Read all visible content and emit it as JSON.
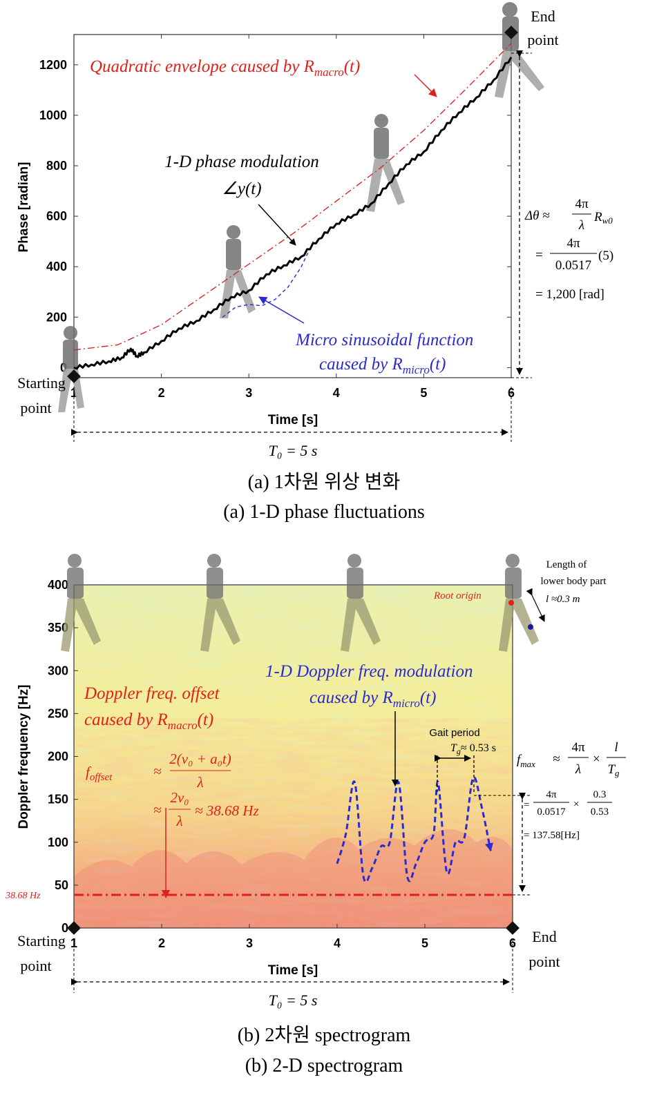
{
  "chart_data": [
    {
      "type": "line",
      "xlabel": "Time [s]",
      "ylabel": "Phase [radian]",
      "xlim": [
        1,
        6
      ],
      "ylim": [
        -40,
        1320
      ],
      "xticks": [
        1,
        2,
        3,
        4,
        5,
        6
      ],
      "yticks": [
        0,
        200,
        400,
        600,
        800,
        1000,
        1200
      ],
      "grid": false,
      "series": [
        {
          "name": "1-D phase modulation ∠y(t)",
          "color": "#000000",
          "x": [
            1.0,
            1.2,
            1.4,
            1.55,
            1.65,
            1.72,
            1.8,
            2.0,
            2.2,
            2.4,
            2.6,
            2.8,
            3.0,
            3.2,
            3.4,
            3.6,
            3.8,
            4.0,
            4.2,
            4.4,
            4.6,
            4.8,
            5.0,
            5.2,
            5.4,
            5.6,
            5.8,
            6.0
          ],
          "y": [
            0,
            12,
            25,
            40,
            75,
            45,
            60,
            105,
            155,
            185,
            230,
            280,
            305,
            370,
            405,
            440,
            510,
            570,
            605,
            650,
            730,
            805,
            855,
            940,
            1010,
            1070,
            1140,
            1230
          ]
        },
        {
          "name": "Quadratic envelope caused by Rmacro(t)",
          "color": "#d62728",
          "x": [
            1.0,
            1.5,
            2.0,
            2.5,
            3.0,
            3.5,
            4.0,
            4.5,
            5.0,
            5.5,
            6.0
          ],
          "y": [
            70,
            90,
            170,
            290,
            410,
            530,
            660,
            790,
            940,
            1110,
            1285
          ]
        },
        {
          "name": "Micro sinusoidal function caused by Rmicro(t)",
          "color": "#2a2ad0",
          "x": [
            2.7,
            2.85,
            3.0,
            3.15,
            3.3,
            3.45,
            3.6,
            3.75
          ],
          "y": [
            200,
            240,
            250,
            245,
            270,
            320,
            400,
            510
          ]
        }
      ],
      "annotations": {
        "envelope": "Quadratic envelope caused by R",
        "envelope_sub": "macro",
        "envelope_arg": "(t)",
        "phase_mod": "1-D phase modulation",
        "phase_mod_sym": "∠y(t)",
        "micro_line1": "Micro sinusoidal function",
        "micro_line2": "caused by R",
        "micro_sub": "micro",
        "micro_arg": "(t)",
        "start": "Starting",
        "start2": "point",
        "end": "End",
        "end2": "point",
        "delta_l1": "Δθ ≈",
        "delta_frac_num": "4π",
        "delta_frac_den": "λ",
        "delta_r": "R",
        "delta_r_sub": "w0",
        "delta_l2_pre": "=",
        "delta_l2_num": "4π",
        "delta_l2_den": "0.0517",
        "delta_l2_post": "(5)",
        "delta_l3": "= 1,200 [rad]",
        "t0": "T₀ = 5 s"
      }
    },
    {
      "type": "heatmap",
      "xlabel": "Time [s]",
      "ylabel": "Doppler frequency [Hz]",
      "xlim": [
        1,
        6
      ],
      "ylim": [
        0,
        400
      ],
      "xticks": [
        1,
        2,
        3,
        4,
        5,
        6
      ],
      "yticks": [
        0,
        50,
        100,
        150,
        200,
        250,
        300,
        350,
        400
      ],
      "offset_hz": 38.68,
      "offset_label": "38.68 Hz",
      "micro_curve": {
        "color": "#2a2ad0",
        "x": [
          4.0,
          4.1,
          4.2,
          4.3,
          4.4,
          4.5,
          4.6,
          4.7,
          4.8,
          4.9,
          5.0,
          5.1,
          5.15,
          5.25,
          5.35,
          5.45,
          5.55,
          5.65,
          5.75
        ],
        "y": [
          75,
          110,
          170,
          60,
          70,
          95,
          100,
          170,
          60,
          75,
          100,
          110,
          170,
          65,
          100,
          105,
          175,
          140,
          90
        ]
      },
      "annotations": {
        "offset_t1": "Doppler freq. offset",
        "offset_t2": "caused by R",
        "offset_sub": "macro",
        "offset_arg": "(t)",
        "foffset": "f",
        "foffset_sub": "offset",
        "foffset_eq": "≈",
        "foffset_num": "2(v₀ + a₀t)",
        "foffset_den": "λ",
        "approx2": "≈",
        "approx2_num": "2v₀",
        "approx2_den": "λ",
        "approx2_res": "≈ 38.68 Hz",
        "mod_t1": "1-D Doppler freq. modulation",
        "mod_t2": "caused by R",
        "mod_sub": "micro",
        "mod_arg": "(t)",
        "gait": "Gait period",
        "tg": "T",
        "tg_sub": "g",
        "tg_val": "≈ 0.53 s",
        "length1": "Length of",
        "length2": "lower body part",
        "length3": "l ≈0.3 m",
        "root": "Root origin",
        "fmax": "f",
        "fmax_sub": "max",
        "fmax_eq": "≈",
        "fmax_num": "4π",
        "fmax_den": "λ",
        "fmax_times": "×",
        "fmax_num2": "l",
        "fmax_den2": "T",
        "fmax_den2_sub": "g",
        "calc_eq": "=",
        "calc_num": "4π",
        "calc_den": "0.0517",
        "calc_times": "×",
        "calc_num2": "0.3",
        "calc_den2": "0.53",
        "calc_res": "= 137.58[Hz]",
        "start": "Starting",
        "start2": "point",
        "end": "End",
        "end2": "point",
        "t0": "T₀ = 5 s"
      }
    }
  ],
  "captions": {
    "a_ko": "(a) 1차원 위상 변화",
    "a_en": "(a) 1-D phase fluctuations",
    "b_ko": "(b) 2차원 spectrogram",
    "b_en": "(b) 2-D spectrogram"
  }
}
